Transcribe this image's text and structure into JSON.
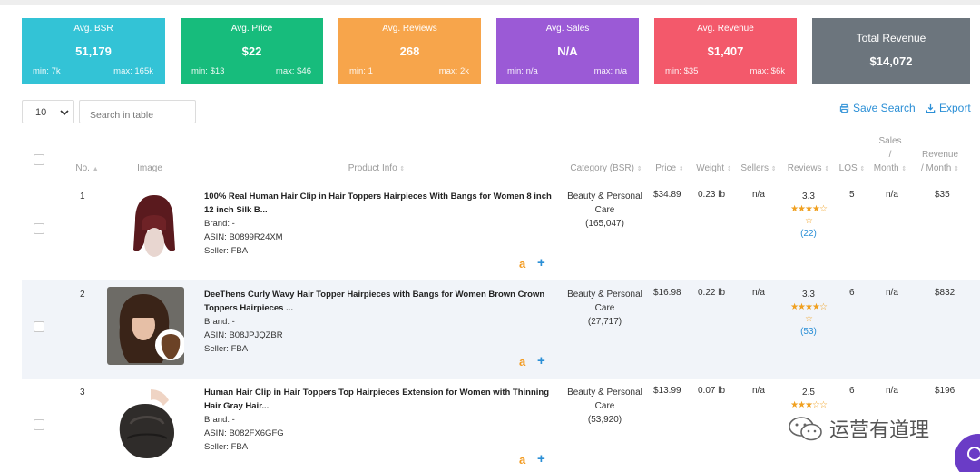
{
  "stats": [
    {
      "title": "Avg. BSR",
      "value": "51,179",
      "min": "min: 7k",
      "max": "max: 165k",
      "color": "#33c3d6"
    },
    {
      "title": "Avg. Price",
      "value": "$22",
      "min": "min: $13",
      "max": "max: $46",
      "color": "#17bc7c"
    },
    {
      "title": "Avg. Reviews",
      "value": "268",
      "min": "min: 1",
      "max": "max: 2k",
      "color": "#f7a54b"
    },
    {
      "title": "Avg. Sales",
      "value": "N/A",
      "min": "min: n/a",
      "max": "max: n/a",
      "color": "#9b5ad6"
    },
    {
      "title": "Avg. Revenue",
      "value": "$1,407",
      "min": "min: $35",
      "max": "max: $6k",
      "color": "#f3596b"
    },
    {
      "title": "Total Revenue",
      "value": "$14,072",
      "color": "#6c757d"
    }
  ],
  "controls": {
    "page_size": "10",
    "search_placeholder": "Search in table",
    "save_search": "Save Search",
    "export": "Export"
  },
  "columns": {
    "no": "No.",
    "image": "Image",
    "product_info": "Product Info",
    "category": "Category (BSR)",
    "price": "Price",
    "weight": "Weight",
    "sellers": "Sellers",
    "reviews": "Reviews",
    "lqs": "LQS",
    "sales_l1": "Sales",
    "sales_l2": "/",
    "sales_l3": "Month",
    "revenue_l1": "Revenue",
    "revenue_l2": "/ Month"
  },
  "rows": [
    {
      "no": "1",
      "title1": "100% Real Human Hair Clip in Hair Toppers Hairpieces With Bangs for Women 8 inch",
      "title2": "12 inch Silk B...",
      "brand": "Brand: -",
      "asin": "ASIN: B0899R24XM",
      "seller": "Seller: FBA",
      "category1": "Beauty & Personal",
      "category2": "Care",
      "bsr": "(165,047)",
      "price": "$34.89",
      "weight": "0.23 lb",
      "sellers": "n/a",
      "rating": "3.3",
      "stars": "★★★★☆",
      "star_extra": "☆",
      "review_count": "(22)",
      "lqs": "5",
      "sales": "n/a",
      "revenue": "$35"
    },
    {
      "no": "2",
      "title1": "DeeThens Curly Wavy Hair Topper Hairpieces with Bangs for Women Brown Crown",
      "title2": "Toppers Hairpieces ...",
      "brand": "Brand: -",
      "asin": "ASIN: B08JPJQZBR",
      "seller": "Seller: FBA",
      "category1": "Beauty & Personal",
      "category2": "Care",
      "bsr": "(27,717)",
      "price": "$16.98",
      "weight": "0.22 lb",
      "sellers": "n/a",
      "rating": "3.3",
      "stars": "★★★★☆",
      "star_extra": "☆",
      "review_count": "(53)",
      "lqs": "6",
      "sales": "n/a",
      "revenue": "$832"
    },
    {
      "no": "3",
      "title1": "Human Hair Clip in Hair Toppers Top Hairpieces Extension for Women with Thinning",
      "title2": "Hair Gray Hair...",
      "brand": "Brand: -",
      "asin": "ASIN: B082FX6GFG",
      "seller": "Seller: FBA",
      "category1": "Beauty & Personal",
      "category2": "Care",
      "bsr": "(53,920)",
      "price": "$13.99",
      "weight": "0.07 lb",
      "sellers": "n/a",
      "rating": "2.5",
      "stars": "★★★☆☆",
      "star_extra": "",
      "review_count": "",
      "lqs": "6",
      "sales": "n/a",
      "revenue": "$196"
    }
  ],
  "icons": {
    "amazon": "amazon-icon",
    "add": "plus-icon",
    "save": "printer-icon",
    "export": "download-icon",
    "wechat": "wechat-icon"
  },
  "watermark": "运营有道理"
}
